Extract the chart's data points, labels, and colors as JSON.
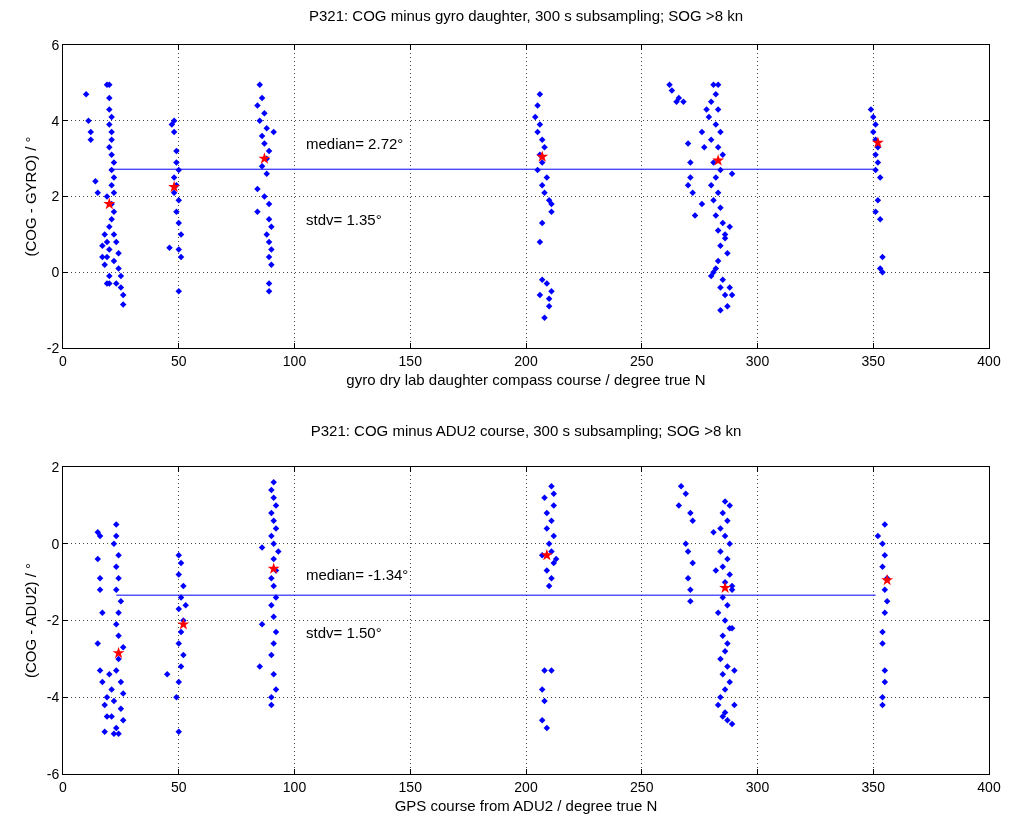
{
  "chart_data": [
    {
      "type": "scatter",
      "title": "P321: COG minus gyro daughter, 300 s subsampling; SOG >8 kn",
      "xlabel": "gyro dry lab daughter compass course / degree true N",
      "ylabel": "(COG - GYRO) / °",
      "xlim": [
        0,
        400
      ],
      "ylim": [
        -2,
        6
      ],
      "xticks": [
        0,
        50,
        100,
        150,
        200,
        250,
        300,
        350,
        400
      ],
      "yticks": [
        -2,
        0,
        2,
        4,
        6
      ],
      "grid": true,
      "annotations": [
        "median= 2.72°",
        "stdv= 1.35°"
      ],
      "series": [
        {
          "color": "#0000ff",
          "marker": "diamond",
          "x": [
            10,
            11,
            12,
            12,
            14,
            15,
            19,
            20,
            20,
            20,
            21,
            20,
            21,
            21,
            20,
            21,
            22,
            21,
            22,
            21,
            22,
            19,
            21,
            22,
            21,
            20,
            18,
            22,
            19,
            23,
            17,
            20,
            24,
            19,
            22,
            18,
            24,
            20,
            25,
            19,
            23,
            25,
            26,
            26,
            17,
            20,
            47,
            48,
            48,
            49,
            49,
            50,
            48,
            49,
            48,
            50,
            49,
            50,
            51,
            46,
            50,
            51,
            50,
            85,
            86,
            84,
            87,
            85,
            88,
            86,
            87,
            89,
            88,
            86,
            88,
            84,
            87,
            89,
            84,
            89,
            90,
            88,
            89,
            90,
            89,
            90,
            89,
            89,
            91,
            206,
            205,
            204,
            206,
            205,
            207,
            208,
            206,
            207,
            205,
            209,
            207,
            208,
            210,
            211,
            207,
            206,
            207,
            206,
            209,
            210,
            211,
            208,
            210,
            211,
            262,
            263,
            265,
            268,
            266,
            270,
            271,
            271,
            270,
            272,
            273,
            281,
            283,
            282,
            280,
            283,
            279,
            282,
            284,
            280,
            283,
            285,
            281,
            284,
            282,
            280,
            283,
            281,
            284,
            282,
            285,
            283,
            286,
            284,
            287,
            283,
            282,
            281,
            280,
            285,
            284,
            286,
            287,
            284,
            288,
            289,
            286,
            276,
            276,
            277,
            288,
            289,
            278,
            349,
            350,
            351,
            350,
            351,
            352,
            351,
            352,
            351,
            353,
            352,
            351,
            353,
            354,
            353,
            354
          ],
          "values": [
            4.7,
            4.0,
            3.7,
            3.5,
            2.4,
            2.1,
            4.95,
            4.95,
            4.6,
            4.3,
            4.1,
            3.9,
            3.7,
            3.5,
            3.3,
            3.1,
            2.9,
            2.7,
            2.5,
            2.3,
            2.1,
            2.0,
            1.8,
            1.6,
            1.4,
            1.2,
            1.0,
            1.0,
            0.8,
            0.8,
            0.7,
            0.6,
            0.5,
            0.4,
            0.3,
            0.2,
            0.1,
            -0.1,
            -0.1,
            -0.3,
            -0.3,
            -0.4,
            -0.6,
            -0.85,
            0.4,
            -0.3,
            3.9,
            4.0,
            3.7,
            3.2,
            2.9,
            2.7,
            2.5,
            2.3,
            2.1,
            1.9,
            1.6,
            1.3,
            1.0,
            0.65,
            0.6,
            0.4,
            -0.5,
            4.95,
            4.6,
            4.4,
            4.2,
            4.0,
            3.8,
            3.6,
            3.4,
            3.2,
            3.0,
            2.8,
            2.6,
            2.2,
            2.0,
            1.8,
            1.6,
            1.4,
            1.2,
            1.0,
            0.8,
            0.6,
            0.4,
            0.2,
            -0.3,
            -0.5,
            3.7,
            4.7,
            4.4,
            4.1,
            3.9,
            3.7,
            3.5,
            3.3,
            3.1,
            2.9,
            2.7,
            2.5,
            2.3,
            2.1,
            1.9,
            1.6,
            1.3,
            0.8,
            -0.2,
            -0.6,
            -0.3,
            -0.7,
            -0.5,
            -1.2,
            -0.9,
            1.8,
            4.95,
            4.8,
            4.5,
            4.5,
            4.6,
            3.4,
            2.9,
            2.5,
            2.3,
            2.1,
            1.5,
            4.95,
            4.95,
            4.7,
            4.5,
            4.3,
            4.1,
            3.9,
            3.7,
            3.5,
            3.3,
            3.1,
            2.9,
            2.7,
            2.5,
            2.3,
            2.1,
            1.9,
            1.7,
            1.5,
            1.3,
            1.1,
            0.9,
            0.7,
            0.5,
            0.3,
            0.1,
            0.0,
            -0.1,
            -0.2,
            -0.4,
            -0.6,
            -0.9,
            -1.0,
            -0.4,
            -0.6,
            1.0,
            3.7,
            1.8,
            3.3,
            1.2,
            2.6,
            4.3,
            4.3,
            4.1,
            3.9,
            3.7,
            3.5,
            3.3,
            3.1,
            2.9,
            2.7,
            2.5,
            1.9,
            1.6,
            1.4,
            0.4,
            0.1,
            0.0
          ]
        },
        {
          "type": "line",
          "color": "#0000ff",
          "marker": "none",
          "x": [
            20,
            351
          ],
          "values": [
            2.72,
            2.72
          ]
        },
        {
          "type": "scatter",
          "color": "#ff0000",
          "marker": "star",
          "x": [
            20,
            48,
            87,
            207,
            283,
            352
          ],
          "values": [
            1.8,
            2.25,
            3.0,
            3.05,
            2.95,
            3.42
          ]
        }
      ]
    },
    {
      "type": "scatter",
      "title": "P321: COG minus ADU2 course, 300 s subsampling; SOG >8 kn",
      "xlabel": "GPS course from ADU2 / degree true N",
      "ylabel": "(COG - ADU2) / °",
      "xlim": [
        0,
        400
      ],
      "ylim": [
        -6,
        2
      ],
      "xticks": [
        0,
        50,
        100,
        150,
        200,
        250,
        300,
        350,
        400
      ],
      "yticks": [
        -6,
        -4,
        -2,
        0,
        2
      ],
      "grid": true,
      "annotations": [
        "median= -1.34°",
        "stdv= 1.50°"
      ],
      "series": [
        {
          "color": "#0000ff",
          "marker": "diamond",
          "x": [
            15,
            16,
            15,
            16,
            16,
            17,
            15,
            16,
            17,
            18,
            19,
            18,
            23,
            23,
            22,
            24,
            23,
            24,
            23,
            25,
            24,
            23,
            24,
            26,
            24,
            23,
            25,
            21,
            26,
            22,
            25,
            21,
            26,
            23,
            24,
            22,
            20,
            19,
            50,
            51,
            50,
            52,
            51,
            50,
            52,
            51,
            50,
            52,
            51,
            50,
            49,
            45,
            50,
            53,
            91,
            90,
            91,
            92,
            90,
            91,
            92,
            90,
            91,
            93,
            91,
            92,
            90,
            91,
            92,
            90,
            91,
            86,
            92,
            91,
            90,
            85,
            91,
            92,
            90,
            90,
            86,
            211,
            212,
            208,
            212,
            209,
            211,
            209,
            212,
            210,
            211,
            207,
            212,
            209,
            211,
            210,
            208,
            207,
            208,
            207,
            209,
            211,
            213,
            267,
            269,
            266,
            271,
            272,
            269,
            270,
            272,
            270,
            271,
            271,
            286,
            288,
            285,
            287,
            284,
            286,
            288,
            284,
            287,
            285,
            288,
            286,
            289,
            285,
            287,
            283,
            286,
            288,
            285,
            287,
            286,
            284,
            287,
            285,
            288,
            286,
            284,
            283,
            286,
            285,
            287,
            289,
            290,
            289,
            282,
            281,
            289,
            290,
            355,
            352,
            354,
            355,
            354,
            356,
            355,
            356,
            355,
            354,
            354,
            355,
            355,
            354,
            354
          ],
          "values": [
            0.3,
            0.2,
            -0.4,
            -0.9,
            -1.2,
            -1.8,
            -2.6,
            -3.3,
            -3.6,
            -4.2,
            -4.5,
            -4.9,
            0.5,
            0.2,
            0.0,
            -0.3,
            -0.6,
            -0.9,
            -1.2,
            -1.5,
            -1.8,
            -2.1,
            -2.4,
            -2.7,
            -3.0,
            -3.3,
            -3.6,
            -3.8,
            -3.9,
            -4.1,
            -4.3,
            -4.5,
            -4.6,
            -4.8,
            -4.95,
            -4.95,
            -3.4,
            -4.0,
            -0.3,
            -0.5,
            -0.8,
            -1.1,
            -1.4,
            -1.7,
            -2.0,
            -2.3,
            -2.6,
            -2.9,
            -3.2,
            -3.6,
            -4.0,
            -3.4,
            -4.9,
            -1.6,
            1.6,
            1.4,
            1.2,
            1.0,
            0.8,
            0.6,
            0.4,
            0.2,
            0.0,
            -0.2,
            -0.4,
            -0.7,
            -0.9,
            -1.1,
            -1.4,
            -1.6,
            -1.9,
            -2.1,
            -2.3,
            -2.6,
            -2.9,
            -3.2,
            -3.4,
            -3.8,
            -4.0,
            -4.2,
            -0.1,
            1.5,
            1.3,
            1.2,
            1.0,
            0.8,
            0.6,
            0.4,
            0.2,
            0.0,
            -0.2,
            -0.3,
            -0.5,
            -0.7,
            -0.9,
            -1.1,
            -3.3,
            -3.8,
            -4.1,
            -4.6,
            -4.8,
            -3.3,
            -0.4,
            1.5,
            1.3,
            1.0,
            0.8,
            0.6,
            0.0,
            -0.2,
            -0.5,
            -0.9,
            -1.2,
            -1.5,
            1.1,
            1.0,
            0.8,
            0.6,
            0.4,
            0.2,
            0.0,
            -0.2,
            -0.4,
            -0.6,
            -0.8,
            -1.0,
            -1.2,
            -1.4,
            -1.6,
            -1.8,
            -2.0,
            -2.2,
            -2.4,
            -2.6,
            -2.8,
            -3.0,
            -3.2,
            -3.4,
            -3.6,
            -3.8,
            -4.0,
            -4.2,
            -4.4,
            -4.5,
            -4.6,
            -4.7,
            -3.3,
            -1.1,
            -0.7,
            0.3,
            -2.2,
            -4.2,
            0.5,
            0.2,
            0.0,
            -0.3,
            -0.6,
            -0.9,
            -1.2,
            -1.5,
            -1.8,
            -2.3,
            -2.6,
            -3.3,
            -3.6,
            -4.0,
            -4.2
          ]
        },
        {
          "type": "line",
          "color": "#0000ff",
          "marker": "none",
          "x": [
            23,
            351
          ],
          "values": [
            -1.34,
            -1.34
          ]
        },
        {
          "type": "scatter",
          "color": "#ff0000",
          "marker": "star",
          "x": [
            24,
            52,
            91,
            209,
            286,
            356
          ],
          "values": [
            -2.85,
            -2.1,
            -0.65,
            -0.3,
            -1.15,
            -0.95
          ]
        }
      ]
    }
  ]
}
